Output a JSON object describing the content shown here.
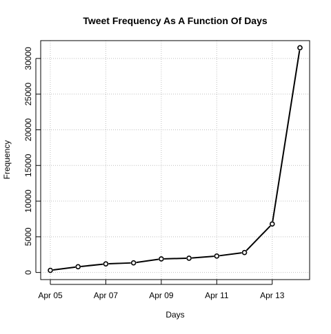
{
  "chart_data": {
    "type": "line",
    "title": "Tweet Frequency As A Function Of Days",
    "xlabel": "Days",
    "ylabel": "Frequency",
    "x": [
      "Apr 05",
      "Apr 06",
      "Apr 07",
      "Apr 08",
      "Apr 09",
      "Apr 10",
      "Apr 11",
      "Apr 12",
      "Apr 13",
      "Apr 14"
    ],
    "values": [
      300,
      800,
      1200,
      1350,
      1900,
      2000,
      2300,
      2800,
      6800,
      31500
    ],
    "xticks": [
      "Apr 05",
      "Apr 07",
      "Apr 09",
      "Apr 11",
      "Apr 13"
    ],
    "yticks": [
      0,
      5000,
      10000,
      15000,
      20000,
      25000,
      30000
    ],
    "ylim": [
      -1000,
      32500
    ],
    "grid": true,
    "grid_style": "dotted",
    "line_color": "#000000",
    "marker": "open-circle",
    "grid_color": "#bebebe"
  }
}
